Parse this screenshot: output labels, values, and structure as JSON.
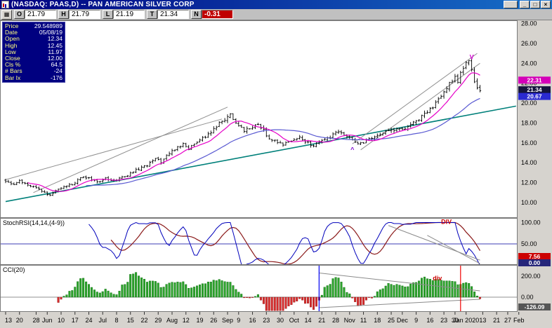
{
  "window": {
    "title": "(NASDAQ: PAAS,D) -- PAN AMERICAN SILVER CORP",
    "controls": {
      "minimize": "_",
      "maximize": "□",
      "close": "×"
    }
  },
  "quote_bar": {
    "grid_icon": "▦",
    "fields": [
      {
        "label": "O",
        "value": "21.79"
      },
      {
        "label": "H",
        "value": "21.79"
      },
      {
        "label": "L",
        "value": "21.19"
      },
      {
        "label": "T",
        "value": "21.34"
      },
      {
        "label": "N",
        "value": "-0.31",
        "highlight": "#c00000"
      }
    ]
  },
  "data_window": {
    "rows": [
      {
        "label": "Price",
        "value": "29.548989"
      },
      {
        "label": "Date",
        "value": "05/08/19"
      },
      {
        "label": "Open",
        "value": "12.34"
      },
      {
        "label": "High",
        "value": "12.45"
      },
      {
        "label": "Low",
        "value": "11.97"
      },
      {
        "label": "Close",
        "value": "12.00"
      },
      {
        "label": "Cls %",
        "value": "64.5"
      },
      {
        "label": "# Bars",
        "value": "-24"
      },
      {
        "label": "Bar Ix",
        "value": "-176"
      }
    ]
  },
  "chart_data": {
    "type": "bar",
    "subtype": "ohlc-daily-with-indicators",
    "symbol": "PAAS",
    "title": "PAN AMERICAN SILVER CORP Daily with StochRSI and CCI",
    "price_panel": {
      "ylim": [
        8.45,
        28.3
      ],
      "yticks": [
        "28.00",
        "26.00",
        "24.00",
        "22.00",
        "20.00",
        "18.00",
        "16.00",
        "14.00",
        "12.00",
        "10.00"
      ],
      "n_bars": 172,
      "close_keypoints": [
        [
          0,
          12.1
        ],
        [
          3,
          11.9
        ],
        [
          5,
          12.3
        ],
        [
          8,
          11.7
        ],
        [
          11,
          11.5
        ],
        [
          14,
          10.95
        ],
        [
          16,
          10.8
        ],
        [
          20,
          11.5
        ],
        [
          24,
          11.8
        ],
        [
          27,
          12.5
        ],
        [
          30,
          12.4
        ],
        [
          33,
          12.1
        ],
        [
          36,
          12.4
        ],
        [
          39,
          12.15
        ],
        [
          42,
          12.5
        ],
        [
          45,
          12.9
        ],
        [
          48,
          13.4
        ],
        [
          51,
          13.8
        ],
        [
          54,
          14.4
        ],
        [
          56,
          14.1
        ],
        [
          59,
          15.0
        ],
        [
          62,
          15.6
        ],
        [
          64,
          15.9
        ],
        [
          66,
          15.45
        ],
        [
          69,
          16.0
        ],
        [
          72,
          16.6
        ],
        [
          74,
          17.1
        ],
        [
          77,
          17.9
        ],
        [
          79,
          18.4
        ],
        [
          81,
          18.9
        ],
        [
          83,
          17.9
        ],
        [
          86,
          17.2
        ],
        [
          88,
          17.5
        ],
        [
          91,
          17.8
        ],
        [
          93,
          17.2
        ],
        [
          95,
          16.5
        ],
        [
          98,
          16.1
        ],
        [
          100,
          15.9
        ],
        [
          103,
          16.3
        ],
        [
          106,
          16.6
        ],
        [
          108,
          16.1
        ],
        [
          111,
          15.75
        ],
        [
          113,
          16.0
        ],
        [
          116,
          16.4
        ],
        [
          118,
          16.8
        ],
        [
          120,
          17.1
        ],
        [
          123,
          16.7
        ],
        [
          126,
          16.1
        ],
        [
          128,
          15.9
        ],
        [
          131,
          16.4
        ],
        [
          133,
          16.7
        ],
        [
          136,
          17.0
        ],
        [
          138,
          17.3
        ],
        [
          140,
          17.1
        ],
        [
          142,
          17.5
        ],
        [
          144,
          17.3
        ],
        [
          146,
          17.8
        ],
        [
          148,
          18.2
        ],
        [
          150,
          18.7
        ],
        [
          152,
          19.1
        ],
        [
          154,
          19.6
        ],
        [
          156,
          20.3
        ],
        [
          158,
          21.2
        ],
        [
          160,
          22.0
        ],
        [
          162,
          22.6
        ],
        [
          163,
          22.2
        ],
        [
          164,
          22.9
        ],
        [
          165,
          23.4
        ],
        [
          166,
          24.0
        ],
        [
          167,
          24.1
        ],
        [
          168,
          23.4
        ],
        [
          169,
          22.3
        ],
        [
          170,
          21.7
        ],
        [
          171,
          21.34
        ]
      ],
      "last_close": "21.34",
      "badges": [
        {
          "value": "22.31",
          "color": "#d400b8"
        },
        {
          "value": "21.34",
          "color": "#14143c"
        },
        {
          "value": "20.67",
          "color": "#2a2ad0"
        }
      ],
      "ma_fast_period": 9,
      "ma_fast_color": "#e600c8",
      "ma_slow_period": 30,
      "ma_slow_color": "#5a5ad2",
      "trend_lines": [
        {
          "from": [
            0,
            10.1
          ],
          "to": [
            184,
            19.7
          ],
          "color": "#00807a",
          "width": 1.6
        },
        {
          "from": [
            10,
            11.0
          ],
          "to": [
            80,
            19.6
          ],
          "color": "#909090",
          "width": 1
        },
        {
          "from": [
            0,
            12.3
          ],
          "to": [
            78,
            18.4
          ],
          "color": "#909090",
          "width": 1
        },
        {
          "from": [
            125,
            15.9
          ],
          "to": [
            170,
            25.0
          ],
          "color": "#909090",
          "width": 1
        },
        {
          "from": [
            128,
            15.3
          ],
          "to": [
            171,
            24.0
          ],
          "color": "#909090",
          "width": 1
        }
      ],
      "annotations": [
        {
          "text": "V",
          "bar": 168,
          "price": 24.4,
          "color": "#d400d4"
        },
        {
          "text": "^",
          "bar": 125,
          "price": 15.1,
          "color": "#7700cc"
        }
      ]
    },
    "stoch_panel": {
      "label": "StochRSI(14,14,(4-9))",
      "ylim": [
        0,
        100
      ],
      "yticks": [
        "100.00",
        "50.00"
      ],
      "midline": 50,
      "badges": [
        {
          "value": "7.56",
          "color": "#cc0000"
        },
        {
          "value": "0.00",
          "color": "#26267a"
        }
      ],
      "div_label": {
        "text": "DIV",
        "bar": 157,
        "value": 97,
        "color": "#cc0000"
      },
      "div_lines": [
        {
          "from": [
            138,
            93
          ],
          "to": [
            171,
            12
          ]
        },
        {
          "from": [
            152,
            70
          ],
          "to": [
            171,
            4
          ]
        }
      ]
    },
    "cci_panel": {
      "label": "CCI(20)",
      "ylim": [
        -140,
        307
      ],
      "yticks": [
        "200.00",
        "0.00"
      ],
      "badge": {
        "value": "-126.09",
        "color": "#565656"
      },
      "div_label": {
        "text": "div",
        "bar": 154,
        "value": 160,
        "color": "#cc0000"
      },
      "div_lines": [
        {
          "from": [
            113,
            230
          ],
          "to": [
            171,
            60
          ]
        },
        {
          "from": [
            113,
            -100
          ],
          "to": [
            171,
            -20
          ]
        }
      ],
      "v_lines": [
        {
          "bar": 113,
          "color": "#0000f0"
        },
        {
          "bar": 164,
          "color": "#f00000"
        }
      ],
      "bar_up_color": "#2ca32c",
      "bar_down_color": "#d62c2c"
    },
    "x_axis": {
      "labels": [
        [
          0,
          "13"
        ],
        [
          5,
          "20"
        ],
        [
          11,
          "28"
        ],
        [
          15,
          "Jun"
        ],
        [
          20,
          "10"
        ],
        [
          25,
          "17"
        ],
        [
          30,
          "24"
        ],
        [
          35,
          "Jul"
        ],
        [
          40,
          "8"
        ],
        [
          45,
          "15"
        ],
        [
          50,
          "22"
        ],
        [
          55,
          "29"
        ],
        [
          60,
          "Aug"
        ],
        [
          65,
          "12"
        ],
        [
          70,
          "19"
        ],
        [
          75,
          "26"
        ],
        [
          80,
          "Sep"
        ],
        [
          84,
          "9"
        ],
        [
          89,
          "16"
        ],
        [
          94,
          "23"
        ],
        [
          99,
          "30"
        ],
        [
          104,
          "Oct"
        ],
        [
          109,
          "14"
        ],
        [
          114,
          "21"
        ],
        [
          119,
          "28"
        ],
        [
          124,
          "Nov"
        ],
        [
          129,
          "11"
        ],
        [
          134,
          "18"
        ],
        [
          139,
          "25"
        ],
        [
          143,
          "Dec"
        ],
        [
          148,
          "9"
        ],
        [
          153,
          "16"
        ],
        [
          158,
          "23"
        ],
        [
          162,
          "30"
        ],
        [
          166,
          "Jan 2020"
        ],
        [
          172,
          "13"
        ],
        [
          177,
          "21"
        ],
        [
          181,
          "27"
        ],
        [
          185,
          "Feb"
        ]
      ]
    }
  }
}
